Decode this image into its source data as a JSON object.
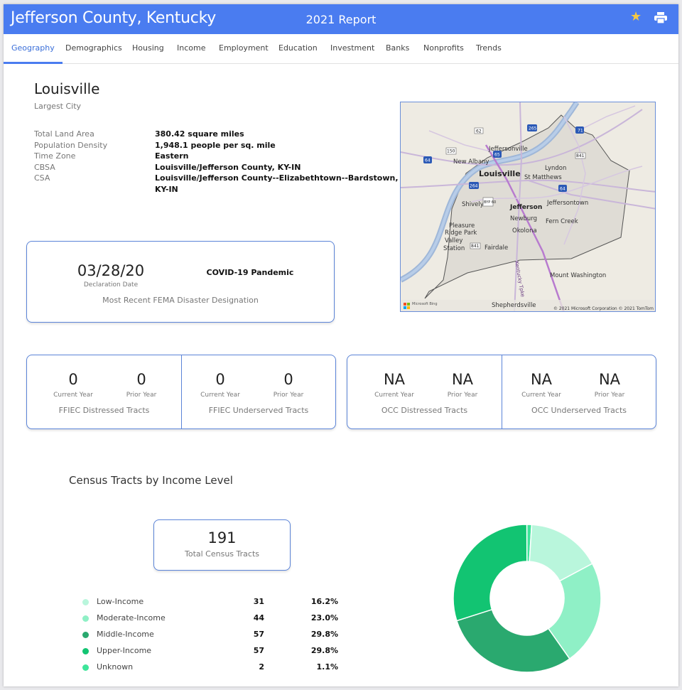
{
  "header": {
    "county": "Jefferson County, Kentucky",
    "report": "2021 Report",
    "accent_color": "#4a7cf0",
    "star_icon": "star-icon",
    "print_icon": "printer-icon"
  },
  "tabs": [
    {
      "label": "Geography",
      "active": true
    },
    {
      "label": "Demographics"
    },
    {
      "label": "Housing"
    },
    {
      "label": "Income"
    },
    {
      "label": "Employment"
    },
    {
      "label": "Education"
    },
    {
      "label": "Investment"
    },
    {
      "label": "Banks"
    },
    {
      "label": "Nonprofits"
    },
    {
      "label": "Trends"
    }
  ],
  "city": {
    "name": "Louisville",
    "subtitle": "Largest City"
  },
  "facts": [
    {
      "label": "Total Land Area",
      "value": "380.42 square miles"
    },
    {
      "label": "Population Density",
      "value": "1,948.1 people per sq. mile"
    },
    {
      "label": "Time Zone",
      "value": "Eastern"
    },
    {
      "label": "CBSA",
      "value": "Louisville/Jefferson County, KY-IN"
    },
    {
      "label": "CSA",
      "value_line1": "Louisville/Jefferson County--Elizabethtown--Bardstown,",
      "value_line2": "KY-IN"
    }
  ],
  "map": {
    "places": [
      "Jeffersonville",
      "New Albany",
      "Louisville",
      "St Matthews",
      "Lyndon",
      "Shively",
      "Jefferson",
      "Jeffersontown",
      "Newburg",
      "Fern Creek",
      "Pleasure",
      "Ridge Park",
      "Valley",
      "Station",
      "Okolona",
      "Fairdale",
      "Mount Washington",
      "Shepherdsville",
      "Kentucky Tpke"
    ],
    "shields": [
      "62",
      "265",
      "65",
      "150",
      "64",
      "841",
      "71",
      "264",
      "BYP 60",
      "64",
      "841"
    ],
    "attribution": "© 2021 Microsoft Corporation © 2021 TomTom",
    "logo": "Microsoft Bing"
  },
  "fema": {
    "date": "03/28/20",
    "date_label": "Declaration Date",
    "event": "COVID-19 Pandemic",
    "caption": "Most Recent FEMA Disaster Designation"
  },
  "tracts": {
    "ffiec_distressed": {
      "current": "0",
      "prior": "0",
      "label": "FFIEC Distressed Tracts"
    },
    "ffiec_underserved": {
      "current": "0",
      "prior": "0",
      "label": "FFIEC Underserved Tracts"
    },
    "occ_distressed": {
      "current": "NA",
      "prior": "NA",
      "label": "OCC Distressed Tracts"
    },
    "occ_underserved": {
      "current": "NA",
      "prior": "NA",
      "label": "OCC Underserved Tracts"
    },
    "current_label": "Current Year",
    "prior_label": "Prior Year"
  },
  "income": {
    "title": "Census Tracts by Income Level",
    "total": "191",
    "total_label": "Total Census Tracts",
    "levels": [
      {
        "label": "Low-Income",
        "count": "31",
        "pct": "16.2%",
        "color": "#b9f6dc"
      },
      {
        "label": "Moderate-Income",
        "count": "44",
        "pct": "23.0%",
        "color": "#8ff0c6"
      },
      {
        "label": "Middle-Income",
        "count": "57",
        "pct": "29.8%",
        "color": "#2aa96f"
      },
      {
        "label": "Upper-Income",
        "count": "57",
        "pct": "29.8%",
        "color": "#12c472"
      },
      {
        "label": "Unknown",
        "count": "2",
        "pct": "1.1%",
        "color": "#3ee59a"
      }
    ]
  },
  "chart_data": {
    "type": "pie",
    "categories": [
      "Low-Income",
      "Moderate-Income",
      "Middle-Income",
      "Upper-Income",
      "Unknown"
    ],
    "values": [
      31,
      44,
      57,
      57,
      2
    ],
    "title": "Census Tracts by Income Level"
  }
}
